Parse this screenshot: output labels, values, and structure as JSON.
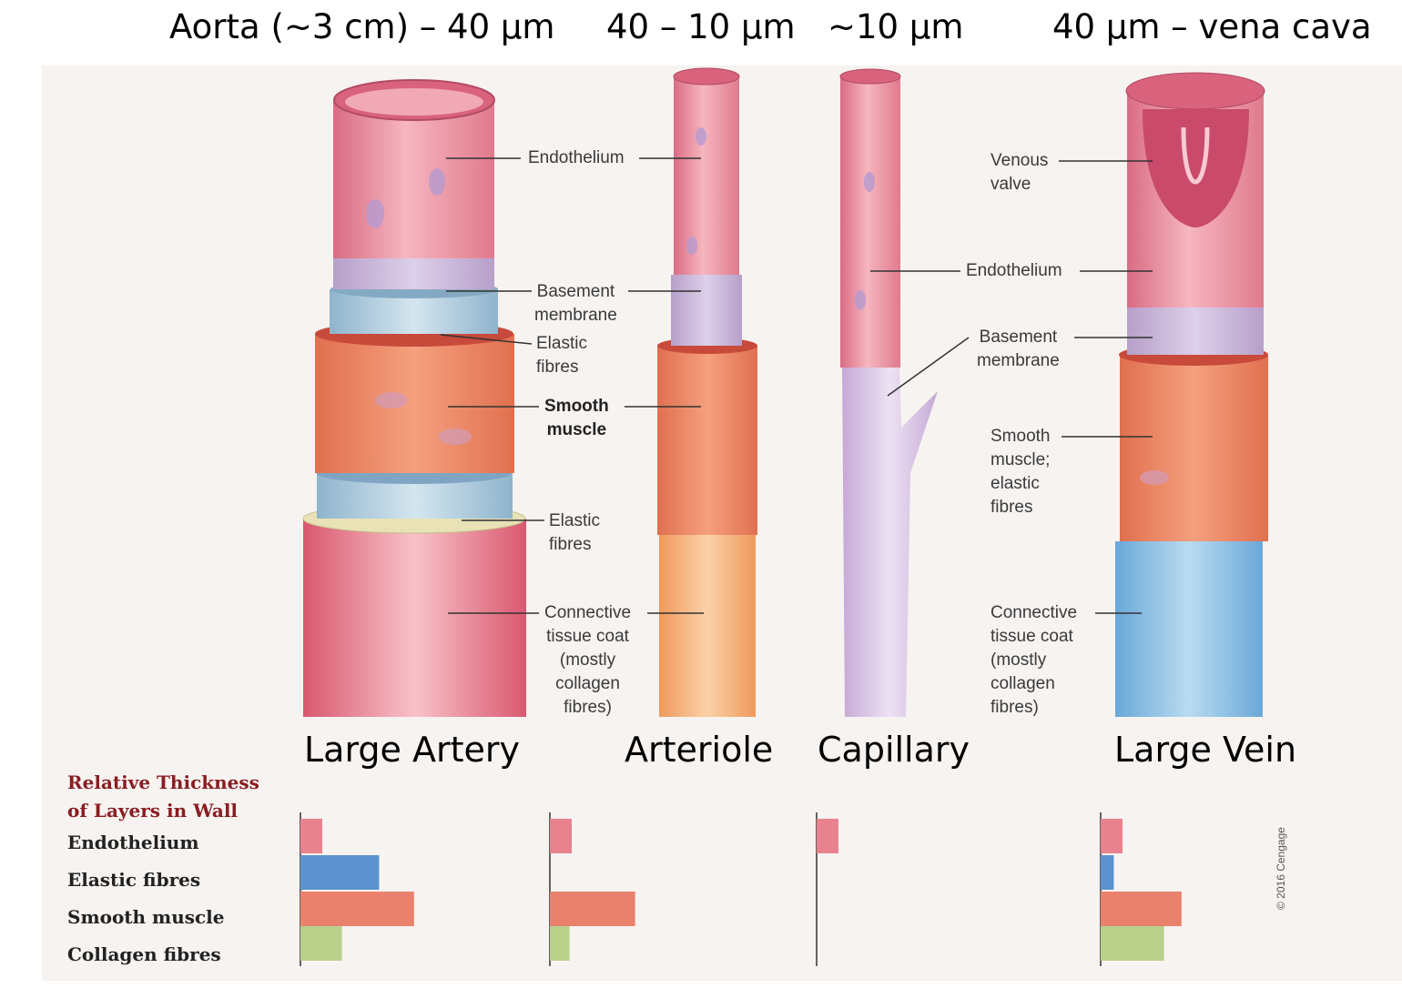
{
  "size_labels": {
    "large_artery": "Aorta (~3 cm) – 40 µm",
    "arteriole": "40 – 10 µm",
    "capillary": "~10 µm",
    "large_vein": "40 µm – vena cava"
  },
  "vessel_names": {
    "large_artery": "Large Artery",
    "arteriole": "Arteriole",
    "capillary": "Capillary",
    "large_vein": "Large Vein"
  },
  "callouts": {
    "endothelium_artery": "Endothelium",
    "basement_membrane_artery": [
      "Basement",
      "membrane"
    ],
    "elastic_fibres_inner": [
      "Elastic",
      "fibres"
    ],
    "smooth_muscle_artery": [
      "Smooth",
      "muscle"
    ],
    "elastic_fibres_outer": [
      "Elastic",
      "fibres"
    ],
    "connective_artery": [
      "Connective",
      "tissue coat",
      "(mostly",
      "collagen",
      "fibres)"
    ],
    "venous_valve": [
      "Venous",
      "valve"
    ],
    "endothelium_capillary_vein": "Endothelium",
    "basement_membrane_vein": [
      "Basement",
      "membrane"
    ],
    "smooth_muscle_vein": [
      "Smooth",
      "muscle;",
      "elastic",
      "fibres"
    ],
    "connective_vein": [
      "Connective",
      "tissue coat",
      "(mostly",
      "collagen",
      "fibres)"
    ]
  },
  "legend": {
    "title": [
      "Relative Thickness",
      "of Layers in Wall"
    ],
    "rows": [
      "Endothelium",
      "Elastic fibres",
      "Smooth muscle",
      "Collagen fibres"
    ]
  },
  "copyright": "© 2016 Cengage",
  "colors": {
    "endothelium": "#e8828f",
    "elastic": "#5b92cf",
    "smooth_muscle": "#e9816c",
    "collagen": "#b9d08a"
  },
  "chart_data": {
    "type": "bar",
    "title": "Relative Thickness of Layers in Wall",
    "categories": [
      "Endothelium",
      "Elastic fibres",
      "Smooth muscle",
      "Collagen fibres"
    ],
    "series": [
      {
        "name": "Large Artery",
        "values": [
          1.0,
          3.6,
          5.2,
          1.9
        ]
      },
      {
        "name": "Arteriole",
        "values": [
          1.0,
          0,
          3.9,
          0.9
        ]
      },
      {
        "name": "Capillary",
        "values": [
          1.0,
          0,
          0,
          0
        ]
      },
      {
        "name": "Large Vein",
        "values": [
          1.0,
          0.6,
          3.7,
          2.9
        ]
      }
    ]
  }
}
